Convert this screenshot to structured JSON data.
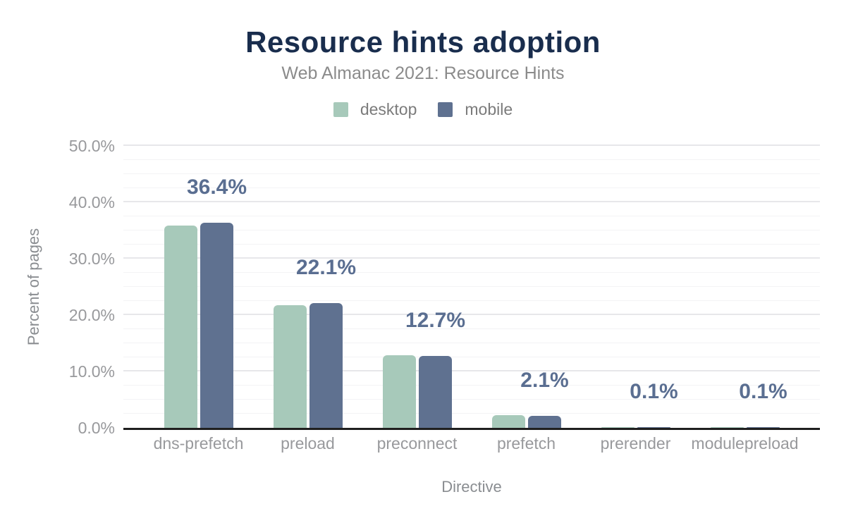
{
  "chart_data": {
    "type": "bar",
    "title": "Resource hints adoption",
    "subtitle": "Web Almanac 2021: Resource Hints",
    "xlabel": "Directive",
    "ylabel": "Percent of pages",
    "categories": [
      "dns-prefetch",
      "preload",
      "preconnect",
      "prefetch",
      "prerender",
      "modulepreload"
    ],
    "series": [
      {
        "name": "desktop",
        "color": "#a7c9ba",
        "values": [
          35.9,
          21.8,
          12.9,
          2.3,
          0.1,
          0.1
        ]
      },
      {
        "name": "mobile",
        "color": "#5f7190",
        "values": [
          36.4,
          22.1,
          12.7,
          2.1,
          0.1,
          0.1
        ]
      }
    ],
    "bar_labels": [
      "36.4%",
      "22.1%",
      "12.7%",
      "2.1%",
      "0.1%",
      "0.1%"
    ],
    "bar_labels_series": "mobile",
    "y_ticks": [
      "0.0%",
      "10.0%",
      "20.0%",
      "30.0%",
      "40.0%",
      "50.0%"
    ],
    "ylim": [
      0,
      50
    ],
    "grid": "horizontal, major every 10%, minor every 2.5%",
    "legend_position": "top-center"
  },
  "colors": {
    "title": "#192d4d",
    "subtitle": "#8b8b8b",
    "data_label": "#5a6e91",
    "axis_line": "#1f1f1f",
    "tick_text": "#98999c",
    "gridline_major": "#e7e7ea",
    "gridline_minor": "#f3f3f5",
    "background": "#ffffff"
  }
}
